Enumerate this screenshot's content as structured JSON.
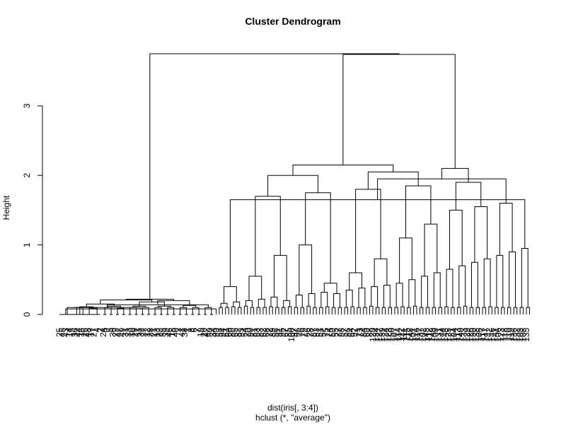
{
  "chart_data": {
    "type": "dendrogram",
    "title": "Cluster Dendrogram",
    "ylabel": "Height",
    "xlabel": "dist(iris[, 3:4])",
    "subtitle": "hclust (*, \"average\")",
    "ylim": [
      0,
      3.75
    ],
    "y_ticks": [
      0,
      1,
      2,
      3
    ],
    "leaf_label_height": -0.19,
    "leaves": [
      "25",
      "45",
      "43",
      "14",
      "15",
      "36",
      "44",
      "16",
      "26",
      "48",
      "17",
      "27",
      "4",
      "2",
      "24",
      "9",
      "5",
      "30",
      "22",
      "47",
      "49",
      "31",
      "33",
      "10",
      "29",
      "11",
      "32",
      "37",
      "12",
      "28",
      "21",
      "13",
      "23",
      "35",
      "39",
      "46",
      "18",
      "40",
      "3",
      "41",
      "38",
      "1",
      "8",
      "6",
      "7",
      "19",
      "20",
      "42",
      "50",
      "34",
      "99",
      "58",
      "94",
      "61",
      "60",
      "80",
      "65",
      "82",
      "93",
      "54",
      "70",
      "90",
      "81",
      "63",
      "83",
      "62",
      "68",
      "72",
      "89",
      "56",
      "91",
      "95",
      "67",
      "85",
      "100",
      "97",
      "96",
      "76",
      "79",
      "66",
      "78",
      "87",
      "53",
      "51",
      "52",
      "75",
      "74",
      "59",
      "55",
      "77",
      "98",
      "57",
      "86",
      "64",
      "92",
      "71",
      "73",
      "84",
      "69",
      "88",
      "120",
      "134",
      "127",
      "139",
      "124",
      "128",
      "150",
      "107",
      "114",
      "122",
      "111",
      "115",
      "148",
      "101",
      "116",
      "137",
      "102",
      "143",
      "112",
      "149",
      "109",
      "131",
      "144",
      "145",
      "125",
      "121",
      "104",
      "113",
      "140",
      "133",
      "129",
      "126",
      "130",
      "138",
      "105",
      "117",
      "147",
      "142",
      "146",
      "141",
      "106",
      "123",
      "118",
      "110",
      "119",
      "136",
      "132",
      "103",
      "108",
      "135"
    ],
    "merges": [
      [
        -1,
        -5,
        0
      ],
      [
        -2,
        -13,
        0
      ],
      [
        -3,
        -4,
        0
      ],
      [
        -6,
        -7,
        0
      ],
      [
        -8,
        -9,
        0
      ],
      [
        -10,
        -11,
        0
      ],
      [
        -12,
        -14,
        0
      ],
      [
        -15,
        -16,
        0
      ],
      [
        -17,
        -18,
        0
      ],
      [
        -19,
        -20,
        0
      ],
      [
        -21,
        -22,
        0
      ],
      [
        -23,
        -24,
        0
      ],
      [
        -25,
        -26,
        0
      ],
      [
        -27,
        -28,
        0
      ],
      [
        -29,
        -30,
        0
      ],
      [
        -31,
        -32,
        0
      ],
      [
        -33,
        -34,
        0
      ],
      [
        -35,
        -36,
        0
      ],
      [
        -37,
        -38,
        0
      ],
      [
        -39,
        -40,
        0
      ],
      [
        -41,
        -42,
        0
      ],
      [
        -43,
        -44,
        0
      ],
      [
        -45,
        -46,
        0
      ],
      [
        -47,
        -48,
        0
      ],
      [
        -49,
        -50,
        0
      ],
      [
        1,
        -51,
        0.08
      ],
      [
        2,
        3,
        0.1
      ],
      [
        4,
        5,
        0.1
      ],
      [
        6,
        7,
        0.09
      ],
      [
        8,
        9,
        0.1
      ],
      [
        10,
        11,
        0.09
      ],
      [
        12,
        13,
        0.1
      ],
      [
        14,
        15,
        0.1
      ],
      [
        16,
        17,
        0.1
      ],
      [
        18,
        19,
        0.1
      ],
      [
        20,
        21,
        0.1
      ],
      [
        22,
        23,
        0.1
      ],
      [
        24,
        25,
        0.1
      ],
      [
        26,
        27,
        0.1
      ],
      [
        28,
        29,
        0.11
      ],
      [
        30,
        31,
        0.12
      ],
      [
        32,
        33,
        0.12
      ],
      [
        34,
        35,
        0.12
      ],
      [
        36,
        37,
        0.13
      ],
      [
        38,
        39,
        0.14
      ],
      [
        40,
        41,
        0.15
      ],
      [
        42,
        43,
        0.18
      ],
      [
        44,
        45,
        0.2
      ],
      [
        46,
        47,
        0.21
      ],
      [
        48,
        49,
        0.22
      ],
      [
        -52,
        -53,
        0.1
      ],
      [
        -54,
        -55,
        0.1
      ],
      [
        -56,
        -57,
        0.11
      ],
      [
        -58,
        -59,
        0.1
      ],
      [
        -60,
        -61,
        0.12
      ],
      [
        -62,
        -63,
        0.1
      ],
      [
        -64,
        -65,
        0.1
      ],
      [
        -66,
        -67,
        0.1
      ],
      [
        -68,
        -69,
        0.11
      ],
      [
        -70,
        -71,
        0.1
      ],
      [
        -72,
        -73,
        0.1
      ],
      [
        -74,
        -75,
        0.11
      ],
      [
        -76,
        -77,
        0.1
      ],
      [
        -78,
        -79,
        0.1
      ],
      [
        -80,
        -81,
        0.12
      ],
      [
        -82,
        -83,
        0.1
      ],
      [
        -84,
        -85,
        0.1
      ],
      [
        -86,
        -87,
        0.11
      ],
      [
        -88,
        -89,
        0.1
      ],
      [
        -90,
        -91,
        0.1
      ],
      [
        -92,
        -93,
        0.1
      ],
      [
        -94,
        -95,
        0.11
      ],
      [
        -96,
        -97,
        0.1
      ],
      [
        -98,
        -99,
        0.1
      ],
      [
        -100,
        -101,
        0.12
      ],
      [
        -102,
        -103,
        0.1
      ],
      [
        -104,
        -105,
        0.1
      ],
      [
        -106,
        -107,
        0.1
      ],
      [
        -108,
        -109,
        0.1
      ],
      [
        -110,
        -111,
        0.11
      ],
      [
        -112,
        -113,
        0.1
      ],
      [
        -114,
        -115,
        0.12
      ],
      [
        -116,
        -117,
        0.1
      ],
      [
        -118,
        -119,
        0.1
      ],
      [
        -120,
        -121,
        0.1
      ],
      [
        -122,
        -123,
        0.1
      ],
      [
        -124,
        -125,
        0.11
      ],
      [
        -126,
        -127,
        0.1
      ],
      [
        -128,
        -129,
        0.1
      ],
      [
        -130,
        -131,
        0.12
      ],
      [
        -132,
        -133,
        0.1
      ],
      [
        -134,
        -135,
        0.1
      ],
      [
        -136,
        -137,
        0.1
      ],
      [
        -138,
        -139,
        0.11
      ],
      [
        -140,
        -141,
        0.1
      ],
      [
        -142,
        -143,
        0.1
      ],
      [
        -144,
        -145,
        0.1
      ],
      [
        -146,
        -147,
        0.1
      ],
      [
        -148,
        -149,
        0.1
      ],
      [
        -150,
        -151,
        0.1
      ],
      [
        51,
        52,
        0.16
      ],
      [
        53,
        54,
        0.18
      ],
      [
        55,
        56,
        0.2
      ],
      [
        57,
        58,
        0.22
      ],
      [
        59,
        60,
        0.25
      ],
      [
        61,
        62,
        0.2
      ],
      [
        63,
        64,
        0.28
      ],
      [
        65,
        66,
        0.3
      ],
      [
        67,
        68,
        0.32
      ],
      [
        69,
        70,
        0.3
      ],
      [
        71,
        72,
        0.35
      ],
      [
        73,
        74,
        0.38
      ],
      [
        75,
        76,
        0.4
      ],
      [
        77,
        78,
        0.42
      ],
      [
        79,
        80,
        0.45
      ],
      [
        81,
        82,
        0.5
      ],
      [
        83,
        84,
        0.55
      ],
      [
        85,
        86,
        0.6
      ],
      [
        87,
        88,
        0.65
      ],
      [
        89,
        90,
        0.7
      ],
      [
        91,
        92,
        0.75
      ],
      [
        93,
        94,
        0.8
      ],
      [
        95,
        96,
        0.85
      ],
      [
        97,
        98,
        0.9
      ],
      [
        99,
        100,
        0.95
      ],
      [
        101,
        102,
        0.4
      ],
      [
        103,
        104,
        0.55
      ],
      [
        105,
        106,
        0.85
      ],
      [
        107,
        108,
        1.0
      ],
      [
        109,
        110,
        0.45
      ],
      [
        111,
        112,
        0.6
      ],
      [
        113,
        114,
        0.8
      ],
      [
        115,
        116,
        1.1
      ],
      [
        117,
        118,
        1.3
      ],
      [
        119,
        120,
        1.5
      ],
      [
        121,
        122,
        1.55
      ],
      [
        123,
        124,
        1.6
      ],
      [
        125,
        126,
        1.65
      ],
      [
        127,
        128,
        1.7
      ],
      [
        129,
        130,
        1.75
      ],
      [
        131,
        132,
        1.8
      ],
      [
        133,
        134,
        1.85
      ],
      [
        135,
        136,
        1.9
      ],
      [
        137,
        138,
        1.95
      ],
      [
        139,
        140,
        2.0
      ],
      [
        141,
        142,
        2.05
      ],
      [
        143,
        144,
        2.1
      ],
      [
        145,
        146,
        2.15
      ],
      [
        147,
        148,
        3.74
      ],
      [
        50,
        149,
        3.75
      ]
    ]
  }
}
